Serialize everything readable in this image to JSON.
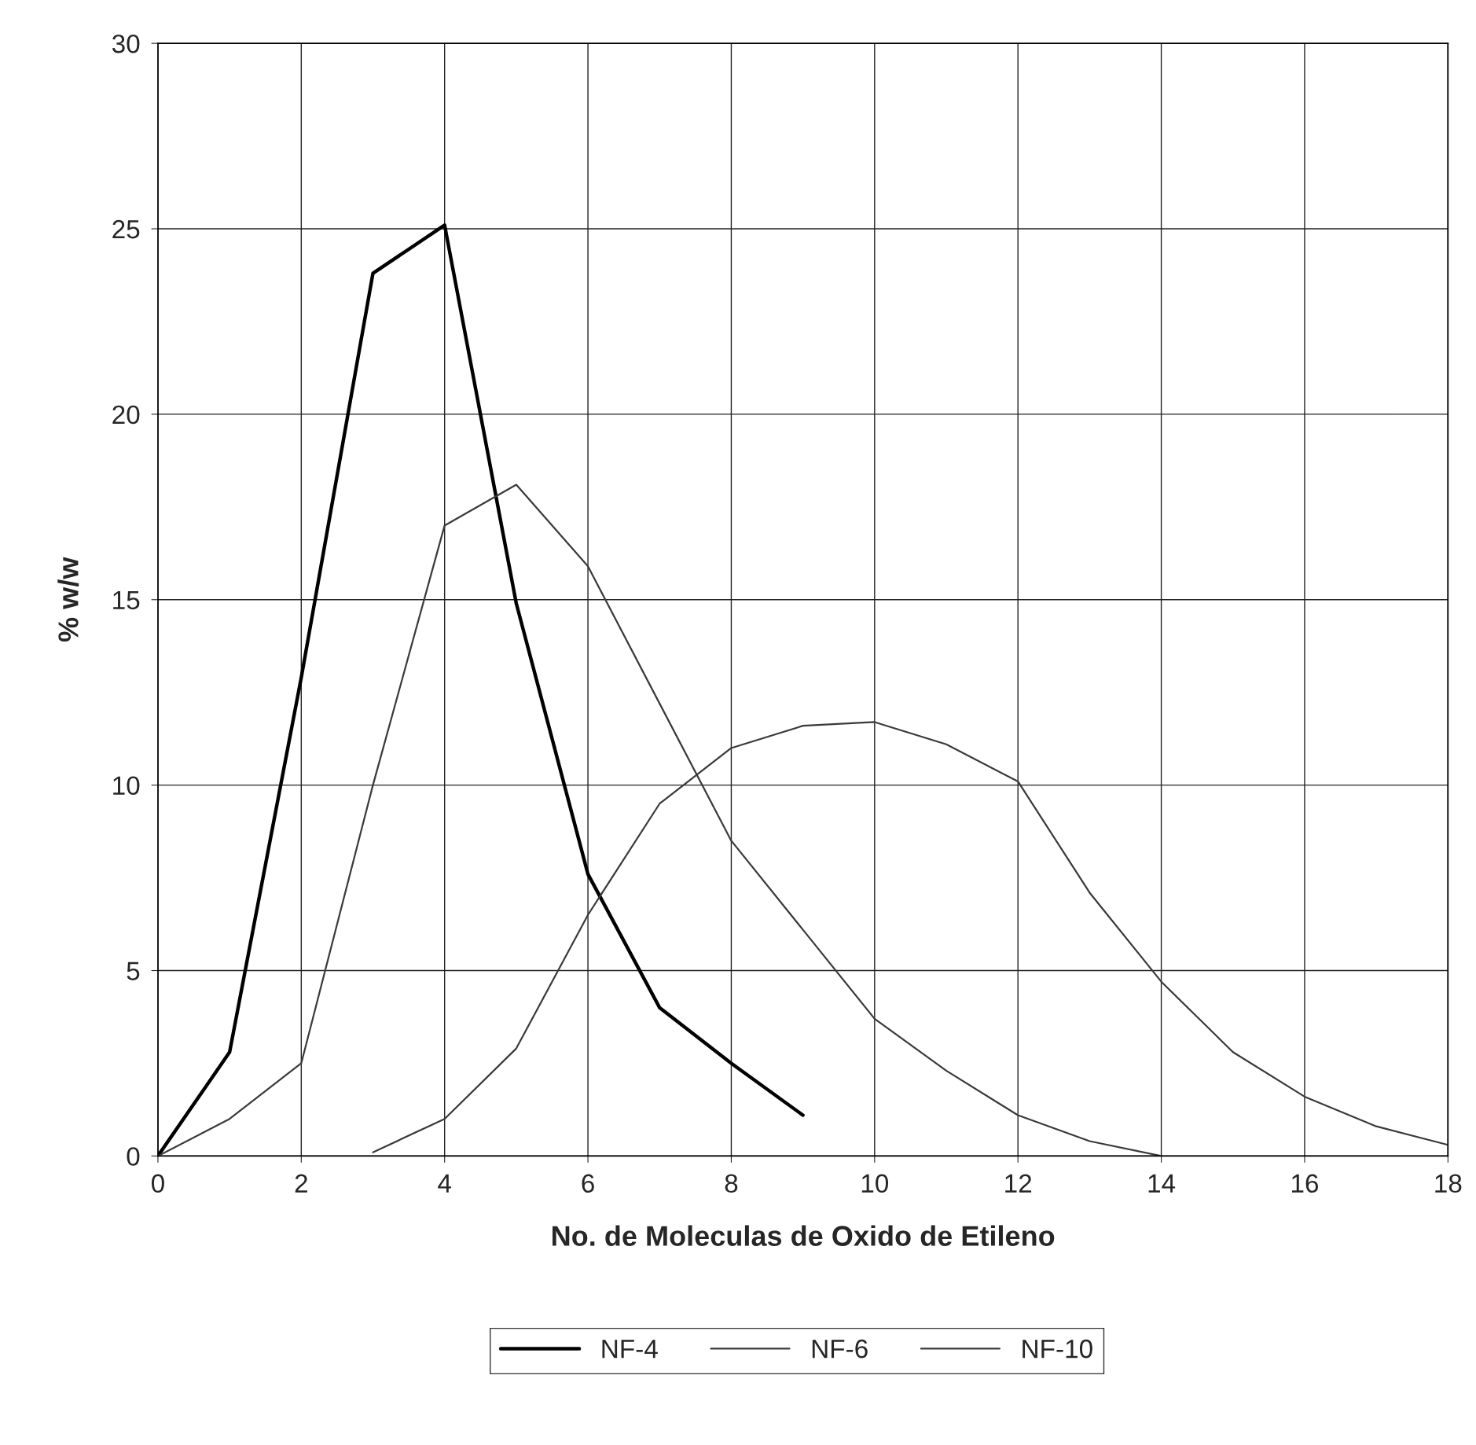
{
  "chart_data": {
    "type": "line",
    "xlabel": "No. de Moleculas de Oxido de Etileno",
    "ylabel": "% w/w",
    "xlim": [
      0,
      18
    ],
    "xticks": [
      0,
      2,
      4,
      6,
      8,
      10,
      12,
      14,
      16,
      18
    ],
    "ylim": [
      0,
      30
    ],
    "yticks": [
      0,
      5,
      10,
      15,
      20,
      25,
      30
    ],
    "grid": true,
    "legend": "bottom",
    "marker": "none",
    "line_style": "solid",
    "series": [
      {
        "name": "NF-4",
        "color": "#000000",
        "x": [
          0,
          1,
          2,
          3,
          4,
          5,
          6,
          7,
          8,
          9
        ],
        "values": [
          0,
          2.8,
          12.9,
          23.8,
          25.1,
          14.9,
          7.6,
          4.0,
          2.5,
          1.1
        ]
      },
      {
        "name": "NF-6",
        "color": "#3a3a3a",
        "x": [
          0,
          1,
          2,
          3,
          4,
          5,
          6,
          7,
          8,
          9,
          10,
          11,
          12,
          13,
          14
        ],
        "values": [
          0,
          1.0,
          2.5,
          10.0,
          17.0,
          18.1,
          15.9,
          12.2,
          8.5,
          6.1,
          3.7,
          2.3,
          1.1,
          0.4,
          0
        ]
      },
      {
        "name": "NF-10",
        "color": "#3a3a3a",
        "x": [
          3,
          4,
          5,
          6,
          7,
          8,
          9,
          10,
          11,
          12,
          13,
          14,
          15,
          16,
          17,
          18
        ],
        "values": [
          0.1,
          1.0,
          2.9,
          6.5,
          9.5,
          11.0,
          11.6,
          11.7,
          11.1,
          10.1,
          7.1,
          4.7,
          2.8,
          1.6,
          0.8,
          0.3
        ]
      }
    ]
  }
}
